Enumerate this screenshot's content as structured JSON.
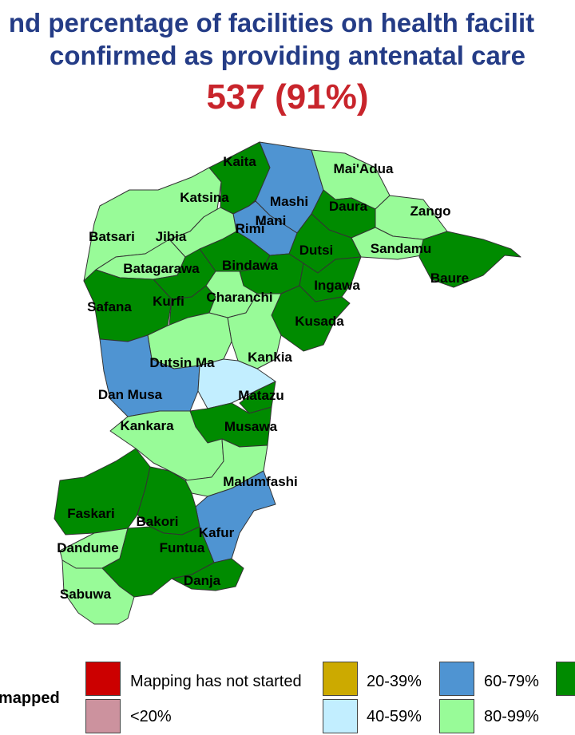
{
  "title": {
    "line1": "nd percentage of facilities on health facilit",
    "line2": "confirmed as providing antenatal care"
  },
  "headline_value": "537 (91%)",
  "lga_labels": {
    "kaita": "Kaita",
    "maiadua": "Mai'Adua",
    "katsina": "Katsina",
    "mashi": "Mashi",
    "daura": "Daura",
    "zango": "Zango",
    "mani": "Mani",
    "batsari": "Batsari",
    "jibia": "Jibia",
    "rimi": "Rimi",
    "sandamu": "Sandamu",
    "dutsi": "Dutsi",
    "bindawa": "Bindawa",
    "batagarawa": "Batagarawa",
    "baure": "Baure",
    "ingawa": "Ingawa",
    "safana": "Safana",
    "kurfi": "Kurfi",
    "charanchi": "Charanchi",
    "kusada": "Kusada",
    "kankia": "Kankia",
    "dutsinma": "Dutsin Ma",
    "danmusa": "Dan Musa",
    "matazu": "Matazu",
    "kankara": "Kankara",
    "musawa": "Musawa",
    "malumfashi": "Malumfashi",
    "faskari": "Faskari",
    "bakori": "Bakori",
    "kafur": "Kafur",
    "dandume": "Dandume",
    "funtua": "Funtua",
    "danja": "Danja",
    "sabuwa": "Sabuwa"
  },
  "legend": {
    "title_fragment": "R mapped",
    "items": [
      {
        "label": "Mapping has not started",
        "color": "#cc0000"
      },
      {
        "label": "<20%",
        "color": "#cc929e"
      },
      {
        "label": "20-39%",
        "color": "#ccaa00"
      },
      {
        "label": "40-59%",
        "color": "#c2eeff"
      },
      {
        "label": "60-79%",
        "color": "#4f94d2"
      },
      {
        "label": "80-99%",
        "color": "#98fb98"
      },
      {
        "label": "",
        "color": "#008b00"
      }
    ]
  },
  "colors": {
    "title": "#243c86",
    "headline": "#c8242b",
    "band_100": "#008b00",
    "band_80_99": "#98fb98",
    "band_60_79": "#4f94d2",
    "band_40_59": "#c2eeff",
    "border": "#333333"
  }
}
